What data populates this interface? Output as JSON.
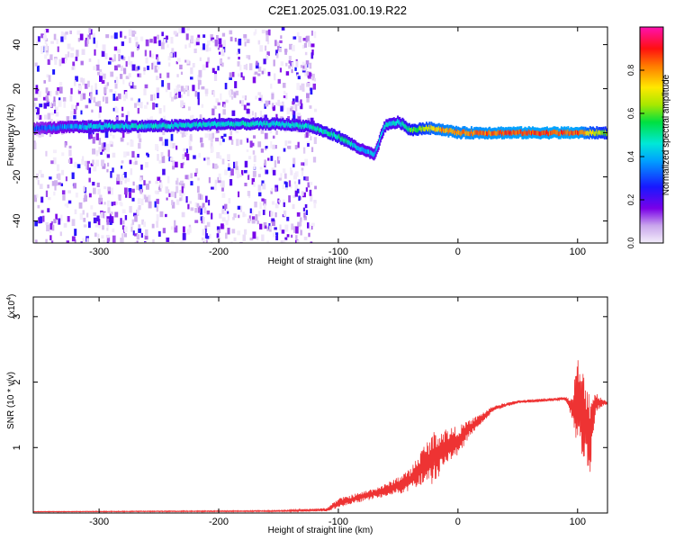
{
  "title": "C2E1.2025.031.00.19.R22",
  "chart_data": [
    {
      "type": "heatmap",
      "xlabel": "Height of straight line (km)",
      "ylabel": "Frequency (Hz)",
      "xlim": [
        -355,
        125
      ],
      "ylim": [
        -50,
        48
      ],
      "x_ticks": [
        {
          "value": -300,
          "label": "-300"
        },
        {
          "value": -200,
          "label": "-200"
        },
        {
          "value": -100,
          "label": "-100"
        },
        {
          "value": 0,
          "label": "0"
        },
        {
          "value": 100,
          "label": "100"
        }
      ],
      "y_ticks": [
        {
          "value": -40,
          "label": "-40"
        },
        {
          "value": -20,
          "label": "-20"
        },
        {
          "value": 0,
          "label": "0"
        },
        {
          "value": 20,
          "label": "20"
        },
        {
          "value": 40,
          "label": "40"
        }
      ],
      "colorbar": {
        "label": "Normalized spectral amplitude",
        "range": [
          0,
          1
        ],
        "colormap": "rainbow: purple-blue-cyan-green-yellow-red-magenta",
        "ticks": [
          {
            "value": 0.0,
            "label": "0.0"
          },
          {
            "value": 0.2,
            "label": "0.2"
          },
          {
            "value": 0.4,
            "label": "0.4"
          },
          {
            "value": 0.6,
            "label": "0.6"
          },
          {
            "value": 0.8,
            "label": "0.8"
          }
        ]
      },
      "trace": {
        "x": [
          -355,
          -300,
          -250,
          -200,
          -150,
          -125,
          -100,
          -80,
          -70,
          -62,
          -50,
          -40,
          -30,
          -20,
          -10,
          0,
          50,
          100,
          110,
          125
        ],
        "frequency": [
          2,
          3,
          3,
          4,
          4,
          3,
          -2,
          -8,
          -10,
          3,
          5,
          1,
          2,
          2,
          1,
          0,
          0,
          0,
          0,
          0
        ],
        "amplitude": [
          0.3,
          0.45,
          0.45,
          0.45,
          0.45,
          0.45,
          0.5,
          0.4,
          0.4,
          0.45,
          0.45,
          0.55,
          0.65,
          0.75,
          0.8,
          0.8,
          0.85,
          0.85,
          0.7,
          0.6
        ]
      },
      "background_noise_x_range": [
        -355,
        -120
      ]
    },
    {
      "type": "line",
      "xlabel": "Height of straight line (km)",
      "ylabel": "SNR (10 * v/v)",
      "scale_note": "(x10",
      "scale_exp": "4",
      "xlim": [
        -355,
        125
      ],
      "ylim": [
        0,
        3.3
      ],
      "color": "#ee3333",
      "x_ticks": [
        {
          "value": -300,
          "label": "-300"
        },
        {
          "value": -200,
          "label": "-200"
        },
        {
          "value": -100,
          "label": "-100"
        },
        {
          "value": 0,
          "label": "0"
        },
        {
          "value": 100,
          "label": "100"
        }
      ],
      "y_ticks": [
        {
          "value": 1,
          "label": "1"
        },
        {
          "value": 2,
          "label": "2"
        },
        {
          "value": 3,
          "label": "3"
        }
      ],
      "envelope": {
        "x": [
          -355,
          -150,
          -110,
          -100,
          -80,
          -60,
          -40,
          -30,
          -20,
          -10,
          0,
          10,
          30,
          50,
          70,
          90,
          95,
          100,
          105,
          110,
          115,
          125
        ],
        "mid": [
          0.02,
          0.03,
          0.05,
          0.15,
          0.25,
          0.35,
          0.5,
          0.7,
          0.85,
          1.0,
          1.1,
          1.3,
          1.6,
          1.7,
          1.72,
          1.75,
          1.6,
          1.7,
          1.5,
          1.2,
          1.7,
          1.68
        ],
        "amp": [
          0.01,
          0.02,
          0.05,
          0.15,
          0.15,
          0.2,
          0.35,
          0.6,
          0.8,
          0.6,
          0.45,
          0.25,
          0.08,
          0.05,
          0.05,
          0.06,
          0.3,
          1.4,
          1.3,
          1.4,
          0.3,
          0.03
        ]
      }
    }
  ]
}
